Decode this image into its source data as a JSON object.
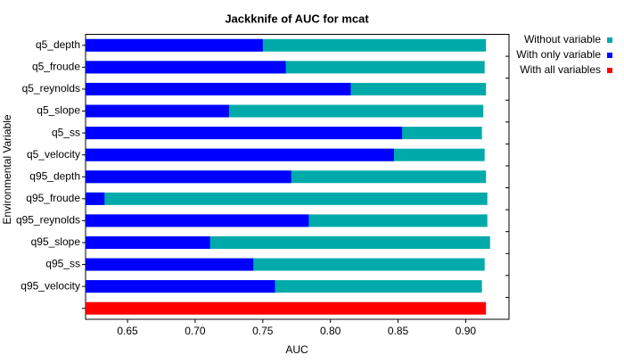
{
  "chart_data": {
    "type": "bar",
    "orientation": "horizontal",
    "title": "Jackknife of AUC for mcat",
    "xlabel": "AUC",
    "ylabel": "Environmental Variable",
    "categories": [
      "q5_depth",
      "q5_froude",
      "q5_reynolds",
      "q5_slope",
      "q5_ss",
      "q5_velocity",
      "q95_depth",
      "q95_froude",
      "q95_reynolds",
      "q95_slope",
      "q95_ss",
      "q95_velocity",
      null
    ],
    "series": [
      {
        "name": "Without variable",
        "color": "#00aaaa",
        "values": [
          0.915,
          0.914,
          0.915,
          0.913,
          0.912,
          0.914,
          0.915,
          0.916,
          0.916,
          0.918,
          0.914,
          0.912,
          null
        ]
      },
      {
        "name": "With only variable",
        "color": "#0000ff",
        "values": [
          0.75,
          0.767,
          0.815,
          0.725,
          0.853,
          0.847,
          0.771,
          0.633,
          0.784,
          0.711,
          0.743,
          0.759,
          null
        ]
      },
      {
        "name": "With all variables",
        "color": "#ff0000",
        "values": [
          null,
          null,
          null,
          null,
          null,
          null,
          null,
          null,
          null,
          null,
          null,
          null,
          0.915
        ]
      }
    ],
    "xlim": [
      0.619,
      0.932
    ],
    "xticks": [
      0.65,
      {
        "value": 0.7,
        "label": "0.70"
      },
      0.75,
      {
        "value": 0.8,
        "label": "0.80"
      },
      0.85,
      {
        "value": 0.9,
        "label": "0.90"
      }
    ],
    "legend": "outside-right",
    "grid": false
  }
}
